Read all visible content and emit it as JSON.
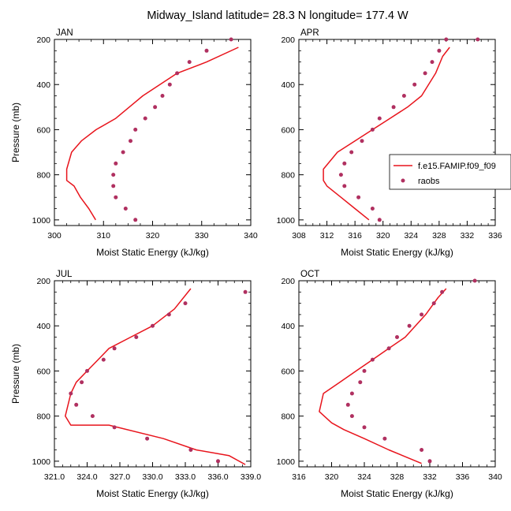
{
  "title": "Midway_Island  latitude= 28.3 N longitude= 177.4 W",
  "colors": {
    "model": "#e8141c",
    "raobs": "#b03060",
    "axis": "#000000"
  },
  "legend": {
    "model": "f.e15.FAMIP.f09_f09",
    "raobs": "raobs",
    "placement": "right of APR panel"
  },
  "chart_data": [
    {
      "type": "line",
      "panel": "JAN",
      "xlabel": "Moist Static Energy (kJ/kg)",
      "ylabel": "Pressure (mb)",
      "xlim": [
        300,
        340
      ],
      "ylim": [
        1025,
        200
      ],
      "xticks": [
        300,
        310,
        320,
        330,
        340
      ],
      "xtick_labels": [
        "300",
        "310",
        "320",
        "330",
        "340"
      ],
      "yticks": [
        200,
        400,
        600,
        800,
        1000
      ],
      "series": [
        {
          "name": "f.e15.FAMIP.f09_f09",
          "kind": "line",
          "x": [
            308.4,
            307.0,
            305.3,
            304.0,
            302.5,
            302.5,
            303.5,
            305.5,
            308.5,
            312.5,
            318.0,
            325.0,
            331.0,
            337.5
          ],
          "y": [
            1000,
            950,
            900,
            850,
            825,
            775,
            700,
            650,
            600,
            550,
            450,
            350,
            300,
            235
          ]
        },
        {
          "name": "raobs",
          "kind": "scatter",
          "x": [
            316.5,
            314.5,
            312.5,
            312.0,
            312.0,
            312.5,
            314.0,
            315.5,
            316.5,
            318.5,
            320.5,
            322.0,
            323.5,
            325.0,
            327.5,
            331.0,
            336.0
          ],
          "y": [
            1000,
            950,
            900,
            850,
            800,
            750,
            700,
            650,
            600,
            550,
            500,
            450,
            400,
            350,
            300,
            250,
            200
          ]
        }
      ]
    },
    {
      "type": "line",
      "panel": "APR",
      "xlabel": "Moist Static Energy (kJ/kg)",
      "ylabel": "",
      "xlim": [
        308,
        336
      ],
      "ylim": [
        1025,
        200
      ],
      "xticks": [
        308,
        312,
        316,
        320,
        324,
        328,
        332,
        336
      ],
      "xtick_labels": [
        "308",
        "312",
        "316",
        "320",
        "324",
        "328",
        "332",
        "336"
      ],
      "yticks": [
        200,
        400,
        600,
        800,
        1000
      ],
      "series": [
        {
          "name": "f.e15.FAMIP.f09_f09",
          "kind": "line",
          "x": [
            318.0,
            316.0,
            314.0,
            312.0,
            311.5,
            311.5,
            313.5,
            316.0,
            318.5,
            321.0,
            323.5,
            325.5,
            327.5,
            328.5,
            329.5
          ],
          "y": [
            1000,
            950,
            900,
            850,
            825,
            775,
            700,
            650,
            600,
            550,
            500,
            450,
            350,
            275,
            235
          ]
        },
        {
          "name": "raobs",
          "kind": "scatter",
          "x": [
            319.5,
            318.5,
            316.5,
            314.5,
            314.0,
            314.5,
            315.5,
            317.0,
            318.5,
            319.5,
            321.5,
            323.0,
            324.5,
            326.0,
            327.0,
            328.0,
            329.0,
            333.5
          ],
          "y": [
            1000,
            950,
            900,
            850,
            800,
            750,
            700,
            650,
            600,
            550,
            500,
            450,
            400,
            350,
            300,
            250,
            200,
            200
          ]
        }
      ]
    },
    {
      "type": "line",
      "panel": "JUL",
      "xlabel": "Moist Static Energy (kJ/kg)",
      "ylabel": "Pressure (mb)",
      "xlim": [
        321,
        339
      ],
      "ylim": [
        1025,
        200
      ],
      "xticks": [
        321,
        324,
        327,
        330,
        333,
        336,
        339
      ],
      "xtick_labels": [
        "321.0",
        "324.0",
        "327.0",
        "330.0",
        "333.0",
        "336.0",
        "339.0"
      ],
      "yticks": [
        200,
        400,
        600,
        800,
        1000
      ],
      "series": [
        {
          "name": "f.e15.FAMIP.f09_f09",
          "kind": "line",
          "x": [
            338.5,
            337.0,
            334.0,
            331.0,
            326.0,
            322.5,
            322.0,
            322.5,
            323.0,
            324.0,
            325.5,
            326.0,
            328.0,
            330.0,
            332.0,
            333.5
          ],
          "y": [
            1015,
            975,
            950,
            900,
            840,
            840,
            800,
            700,
            650,
            600,
            525,
            500,
            450,
            400,
            325,
            235
          ]
        },
        {
          "name": "raobs",
          "kind": "scatter",
          "x": [
            336.0,
            333.5,
            329.5,
            326.5,
            324.5,
            323.0,
            322.5,
            323.5,
            324.0,
            325.5,
            326.5,
            328.5,
            330.0,
            331.5,
            333.0,
            338.5
          ],
          "y": [
            1000,
            950,
            900,
            850,
            800,
            750,
            700,
            650,
            600,
            550,
            500,
            450,
            400,
            350,
            300,
            250
          ]
        }
      ]
    },
    {
      "type": "line",
      "panel": "OCT",
      "xlabel": "Moist Static Energy (kJ/kg)",
      "ylabel": "",
      "xlim": [
        316,
        340
      ],
      "ylim": [
        1025,
        200
      ],
      "xticks": [
        316,
        320,
        324,
        328,
        332,
        336,
        340
      ],
      "xtick_labels": [
        "316",
        "320",
        "324",
        "328",
        "332",
        "336",
        "340"
      ],
      "yticks": [
        200,
        400,
        600,
        800,
        1000
      ],
      "series": [
        {
          "name": "f.e15.FAMIP.f09_f09",
          "kind": "line",
          "x": [
            331.0,
            327.0,
            324.0,
            321.5,
            320.0,
            318.5,
            319.0,
            321.0,
            323.0,
            325.0,
            327.0,
            329.0,
            331.5,
            333.0,
            334.0
          ],
          "y": [
            1010,
            950,
            900,
            860,
            830,
            780,
            700,
            650,
            600,
            550,
            500,
            450,
            350,
            275,
            235
          ]
        },
        {
          "name": "raobs",
          "kind": "scatter",
          "x": [
            332.0,
            331.0,
            326.5,
            324.0,
            322.5,
            322.0,
            322.5,
            323.5,
            324.0,
            325.0,
            327.0,
            328.0,
            329.5,
            331.0,
            332.5,
            333.5,
            337.5
          ],
          "y": [
            1000,
            950,
            900,
            850,
            800,
            750,
            700,
            650,
            600,
            550,
            500,
            450,
            400,
            350,
            300,
            250,
            200
          ]
        }
      ]
    }
  ]
}
